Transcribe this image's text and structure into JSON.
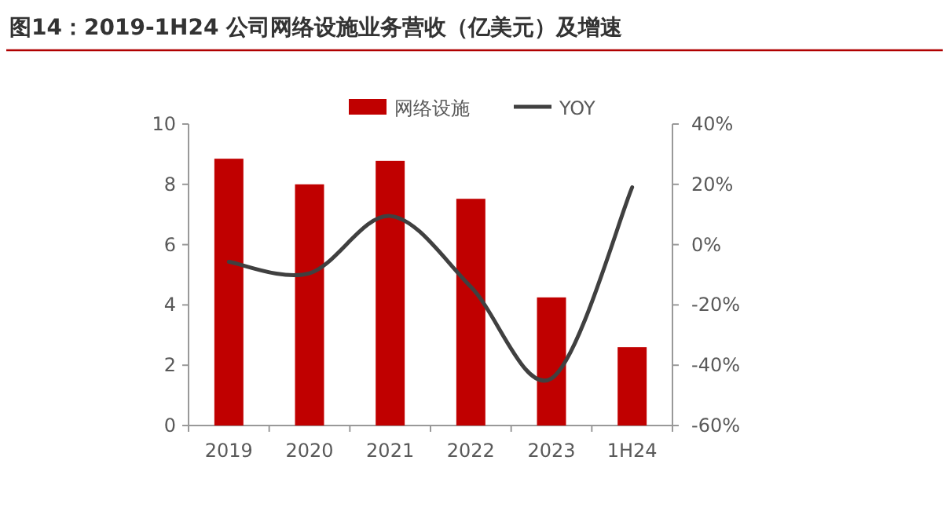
{
  "chart_data": {
    "type": "bar",
    "title": "图14：2019-1H24 公司网络设施业务营收（亿美元）及增速",
    "categories": [
      "2019",
      "2020",
      "2021",
      "2022",
      "2023",
      "1H24"
    ],
    "series": [
      {
        "name": "网络设施",
        "color": "#c00000",
        "values": [
          8.85,
          8.0,
          8.78,
          7.52,
          4.25,
          2.6
        ]
      },
      {
        "name": "YOY",
        "type": "line",
        "axis": "y2",
        "color": "#404040",
        "values": [
          -5.7,
          -9.5,
          9.5,
          -14,
          -44.4,
          19
        ]
      }
    ],
    "ylim": [
      0,
      10
    ],
    "yticks": [
      0,
      2,
      4,
      6,
      8,
      10
    ],
    "y2lim": [
      -60,
      40
    ],
    "y2ticks": [
      {
        "value": -60,
        "label": "-60%"
      },
      {
        "value": -40,
        "label": "-40%"
      },
      {
        "value": -20,
        "label": "-20%"
      },
      {
        "value": 0,
        "label": "0%"
      },
      {
        "value": 20,
        "label": "20%"
      },
      {
        "value": 40,
        "label": "40%"
      }
    ],
    "legend": "top",
    "marker": "none",
    "line_style": "solid"
  }
}
